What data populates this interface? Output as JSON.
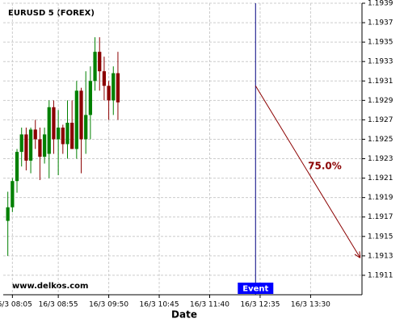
{
  "chart_data": {
    "type": "candlestick",
    "title": "EURUSD 5 (FOREX)",
    "x_label": "Date",
    "watermark": "www.delkos.com",
    "up_color": "#008000",
    "down_color": "#8b0000",
    "grid": true,
    "xlim": [
      "16/3 07:55",
      "16/3 14:26"
    ],
    "ylim": [
      1.1909,
      1.1939
    ],
    "yticks": [
      1.1911,
      1.1913,
      1.1915,
      1.1917,
      1.1919,
      1.1921,
      1.1923,
      1.1925,
      1.1927,
      1.1929,
      1.1931,
      1.1933,
      1.1935,
      1.1937,
      1.1939
    ],
    "xticks": [
      "16/3 08:05",
      "16/3 08:55",
      "16/3 09:50",
      "16/3 10:45",
      "16/3 11:40",
      "16/3 12:35",
      "16/3 13:30"
    ],
    "x": [
      "16/3 08:00",
      "16/3 08:05",
      "16/3 08:10",
      "16/3 08:15",
      "16/3 08:20",
      "16/3 08:25",
      "16/3 08:30",
      "16/3 08:35",
      "16/3 08:40",
      "16/3 08:45",
      "16/3 08:50",
      "16/3 08:55",
      "16/3 09:00",
      "16/3 09:05",
      "16/3 09:10",
      "16/3 09:15",
      "16/3 09:20",
      "16/3 09:25",
      "16/3 09:30",
      "16/3 09:35",
      "16/3 09:40",
      "16/3 09:45",
      "16/3 09:50",
      "16/3 09:55",
      "16/3 10:00"
    ],
    "open": [
      1.19166,
      1.1918,
      1.19207,
      1.19237,
      1.19255,
      1.19228,
      1.1926,
      1.1925,
      1.19232,
      1.19235,
      1.19283,
      1.1925,
      1.19262,
      1.19245,
      1.19267,
      1.1924,
      1.193,
      1.1925,
      1.19275,
      1.1931,
      1.1934,
      1.1932,
      1.19305,
      1.1929,
      1.19318
    ],
    "high": [
      1.19196,
      1.1921,
      1.1924,
      1.19262,
      1.19262,
      1.19262,
      1.1927,
      1.19262,
      1.19262,
      1.1929,
      1.1929,
      1.1928,
      1.19265,
      1.1929,
      1.1929,
      1.1931,
      1.19303,
      1.1932,
      1.19325,
      1.19355,
      1.19355,
      1.19335,
      1.1931,
      1.19325,
      1.1934
    ],
    "low": [
      1.1913,
      1.19175,
      1.19195,
      1.19222,
      1.19218,
      1.19215,
      1.1924,
      1.19208,
      1.19225,
      1.1921,
      1.19235,
      1.19213,
      1.19235,
      1.1923,
      1.1924,
      1.1923,
      1.19215,
      1.19235,
      1.1925,
      1.193,
      1.193,
      1.1929,
      1.1927,
      1.19275,
      1.1927
    ],
    "close": [
      1.1918,
      1.19207,
      1.19237,
      1.19255,
      1.19228,
      1.1926,
      1.1925,
      1.19232,
      1.19255,
      1.19283,
      1.1925,
      1.19262,
      1.19245,
      1.19267,
      1.1924,
      1.193,
      1.1925,
      1.19275,
      1.1931,
      1.1934,
      1.1932,
      1.19305,
      1.1929,
      1.19318,
      1.19288
    ],
    "event": {
      "label": "Event",
      "x": "16/3 12:30",
      "color": "#000080",
      "label_color": "#0000ff"
    },
    "projection": {
      "label": "75.0%",
      "color": "#8b0000",
      "x": [
        "16/3 12:30",
        "16/3 14:24"
      ],
      "y": [
        1.19305,
        1.19128
      ]
    }
  }
}
